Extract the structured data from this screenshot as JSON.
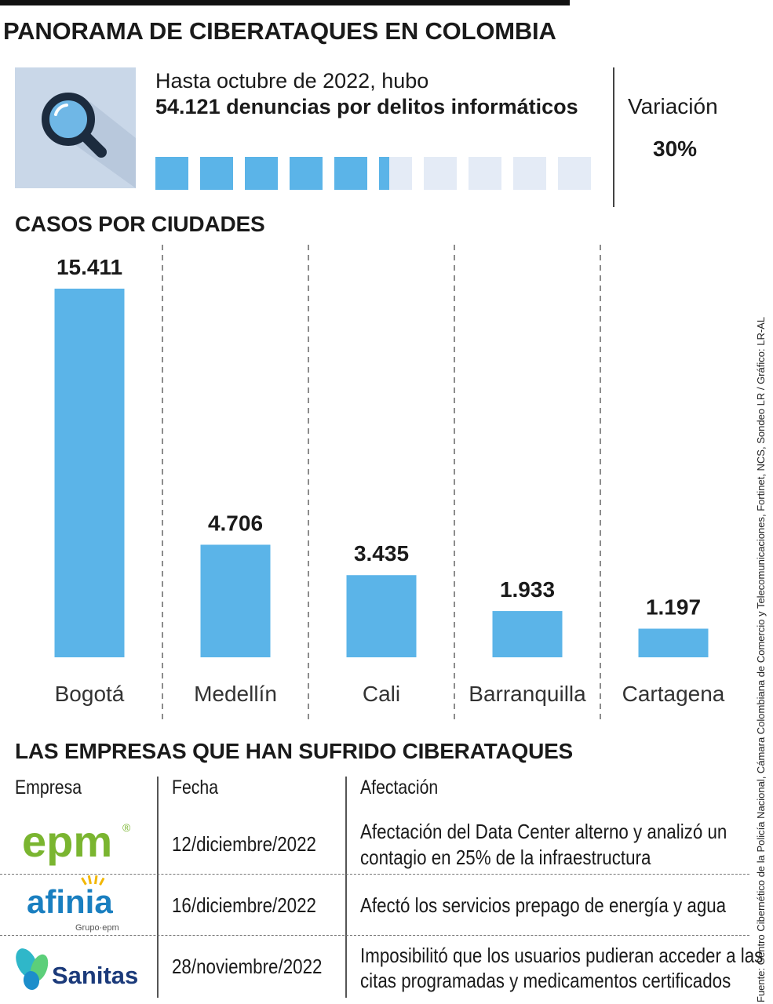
{
  "title": "PANORAMA DE CIBERATAQUES EN COLOMBIA",
  "summary": {
    "intro": "Hasta octubre de 2022, hubo",
    "highlight": "54.121 denuncias por delitos informáticos",
    "icon": "magnifier-icon",
    "progress_squares": {
      "total": 10,
      "filled": 5.3
    },
    "variation_label": "Variación",
    "variation_value": "30%"
  },
  "cities_section_title": "CASOS POR CIUDADES",
  "chart_data": {
    "type": "bar",
    "title": "CASOS POR CIUDADES",
    "categories": [
      "Bogotá",
      "Medellín",
      "Cali",
      "Barranquilla",
      "Cartagena"
    ],
    "values": [
      15411,
      4706,
      3435,
      1933,
      1197
    ],
    "value_labels": [
      "15.411",
      "4.706",
      "3.435",
      "1.933",
      "1.197"
    ],
    "xlabel": "",
    "ylabel": "",
    "ylim": [
      0,
      15411
    ],
    "grid": false,
    "legend": "none",
    "bar_color": "#5bb4e8"
  },
  "companies_section_title": "LAS EMPRESAS QUE HAN SUFRIDO CIBERATAQUES",
  "table": {
    "headers": [
      "Empresa",
      "Fecha",
      "Afectación"
    ],
    "rows": [
      {
        "company": "epm",
        "logo_mark": "®",
        "date": "12/diciembre/2022",
        "impact": [
          "Afectación del Data Center alterno y analizó un",
          "contagio en 25% de la infraestructura"
        ]
      },
      {
        "company": "afinia",
        "logo_sub": "Grupo·epm",
        "date": "16/diciembre/2022",
        "impact": [
          "Afectó los servicios prepago de energía y agua"
        ]
      },
      {
        "company": "Sanitas",
        "date": "28/noviembre/2022",
        "impact": [
          "Imposibilitó que los usuarios pudieran acceder a las",
          "citas programadas y medicamentos certificados"
        ]
      }
    ]
  },
  "colors": {
    "accent": "#5bb4e8",
    "empty_square": "#e4ebf6",
    "icon_bg": "#c9d7e8",
    "epm_green": "#7ab530",
    "afinia_blue": "#1a7fc0",
    "sanitas_navy": "#1b3a7a"
  },
  "source": "Fuente: Centro Cibernético de la Policía Nacional, Cámara Colombiana de Comercio y Telecomunicaciones, Fortinet, NCS, Sondeo LR / Gráfico: LR-AL"
}
